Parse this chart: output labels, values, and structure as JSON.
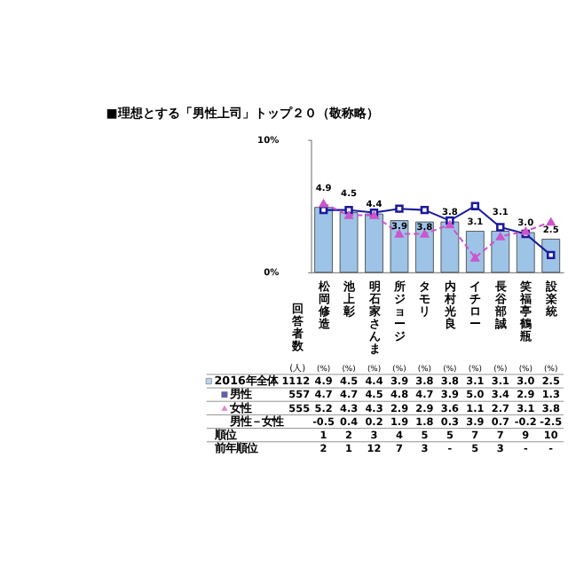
{
  "chart_data": {
    "type": "bar",
    "title": "■理想とする「男性上司」トップ２０（敬称略）",
    "categories": [
      "松岡修造",
      "池上彰",
      "明石家さんま",
      "所ジョージ",
      "タモリ",
      "内村光良",
      "イチロー",
      "長谷部誠",
      "笑福亭鶴瓶",
      "設楽統"
    ],
    "ylim": [
      0,
      10
    ],
    "yticks": [
      {
        "value": 0,
        "label": "0%"
      },
      {
        "value": 10,
        "label": "10%"
      }
    ],
    "grid": false,
    "legend": "bottom left",
    "series": [
      {
        "name": "2016年全体",
        "color": "#9dc3e6",
        "values": [
          4.9,
          4.5,
          4.4,
          3.9,
          3.8,
          3.8,
          3.1,
          3.1,
          3.0,
          2.5
        ],
        "value_labels": [
          "4.9",
          "4.5",
          "4.4",
          "3.9",
          "3.8",
          "3.8",
          "3.1",
          "3.1",
          "3.0",
          "2.5"
        ]
      },
      {
        "name": "男性",
        "type": "line",
        "color": "#1a1a99",
        "marker": "square",
        "line_style": "solid",
        "values": [
          4.7,
          4.7,
          4.5,
          4.8,
          4.7,
          3.9,
          5.0,
          3.4,
          2.9,
          1.3
        ],
        "value_labels": [
          "4.7",
          "4.7",
          "4.5",
          "4.8",
          "4.7",
          "3.9",
          "5.0",
          "3.4",
          "2.9",
          "1.3"
        ]
      },
      {
        "name": "女性",
        "type": "line",
        "color": "#cc55cc",
        "marker": "triangle",
        "line_style": "dashed",
        "values": [
          5.2,
          4.3,
          4.3,
          2.9,
          2.9,
          3.6,
          1.1,
          2.7,
          3.1,
          3.8
        ],
        "value_labels": [
          "5.2",
          "4.3",
          "4.3",
          "2.9",
          "2.9",
          "3.6",
          "1.1",
          "2.7",
          "3.1",
          "3.8"
        ]
      }
    ],
    "annotations": [
      "4.9 4.5 4.4 3.9 3.8 3.8 3.1 3.1 3.0 2.5",
      "回答者数",
      "(人)",
      "(%)",
      "1112",
      "557",
      "555",
      "男性－女性",
      "-0.5 0.4 0.2 1.9 1.8 0.3 3.9 0.7 -0.2 -2.5",
      "順位",
      "1 2 3 4 5 5 7 7 9 10",
      "前年順位",
      "2 1 12 7 3 - 5 3 - -"
    ]
  }
}
